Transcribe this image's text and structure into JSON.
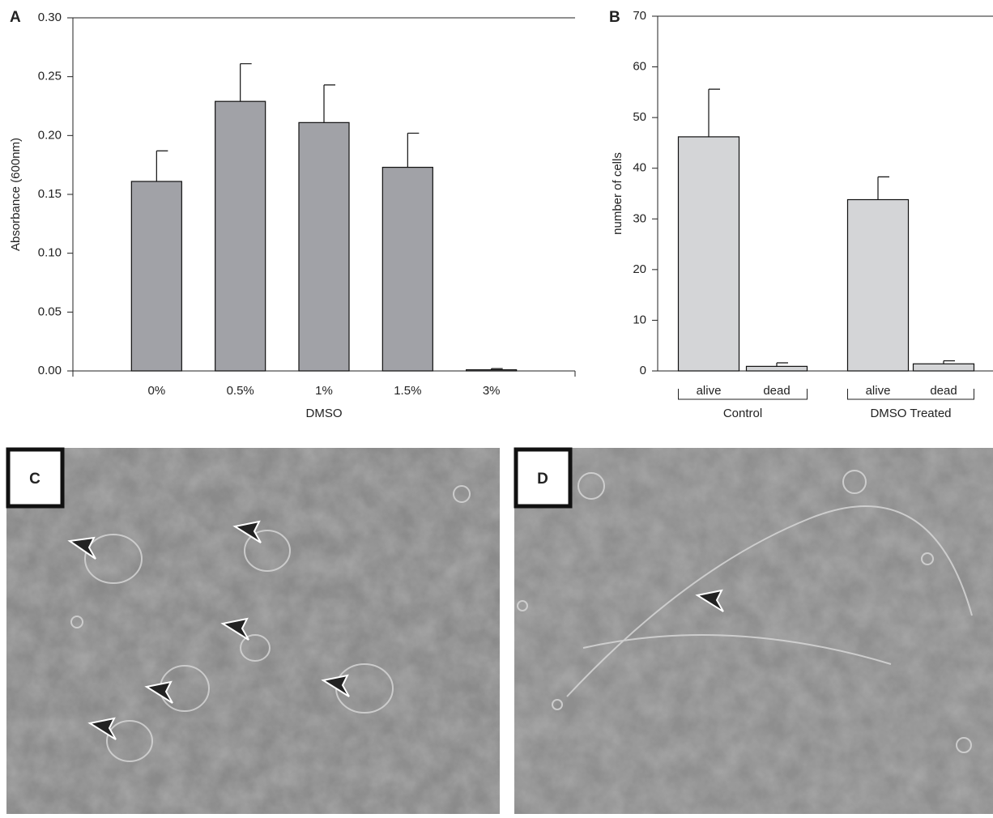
{
  "chart_data": [
    {
      "type": "bar",
      "panel_label": "A",
      "xlabel": "DMSO",
      "ylabel": "Absorbance (600nm)",
      "categories": [
        "0%",
        "0.5%",
        "1%",
        "1.5%",
        "3%"
      ],
      "values": [
        0.161,
        0.229,
        0.211,
        0.173,
        0.001
      ],
      "errors": [
        0.026,
        0.032,
        0.032,
        0.029,
        0.001
      ],
      "color": "#a1a2a7",
      "ylim": [
        0,
        0.3
      ],
      "yticks": [
        {
          "value": 0,
          "label": "0.00"
        },
        {
          "value": 0.05,
          "label": "0.05"
        },
        {
          "value": 0.1,
          "label": "0.10"
        },
        {
          "value": 0.15,
          "label": "0.15"
        },
        {
          "value": 0.2,
          "label": "0.20"
        },
        {
          "value": 0.25,
          "label": "0.25"
        },
        {
          "value": 0.3,
          "label": "0.30"
        }
      ]
    },
    {
      "type": "bar",
      "panel_label": "B",
      "ylabel": "number of cells",
      "categories": [
        "alive",
        "dead",
        "alive",
        "dead"
      ],
      "groups": [
        "Control",
        "DMSO Treated"
      ],
      "values": [
        46.2,
        0.9,
        33.8,
        1.4
      ],
      "errors": [
        9.4,
        0.7,
        4.5,
        0.6
      ],
      "color": "#d4d5d7",
      "ylim": [
        0,
        70
      ],
      "yticks": [
        0,
        10,
        20,
        30,
        40,
        50,
        60,
        70
      ]
    }
  ],
  "images": [
    {
      "label": "C"
    },
    {
      "label": "D"
    }
  ]
}
